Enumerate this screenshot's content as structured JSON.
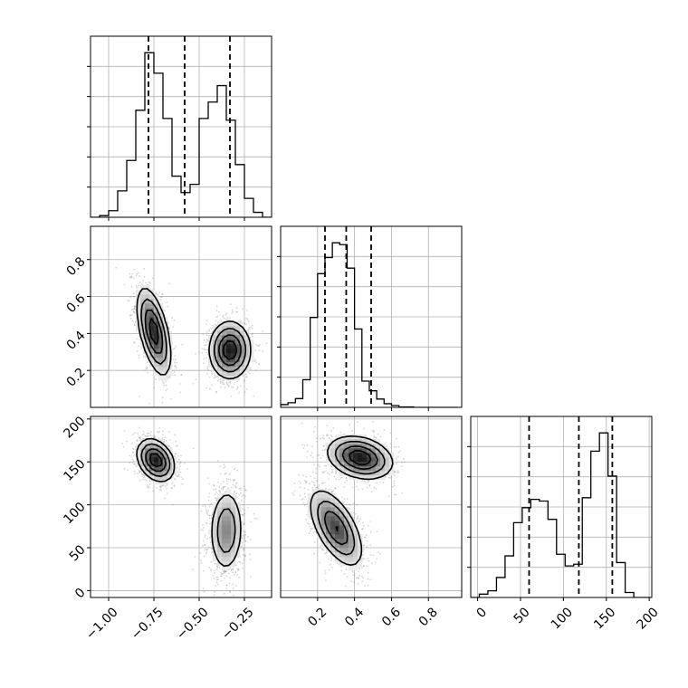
{
  "chart_data": {
    "type": "corner",
    "colors": {
      "ink": "#000000",
      "grid": "#b0b0b0",
      "scatter": "#888888"
    },
    "parameters": [
      {
        "name": "",
        "range": [
          -1.1,
          -0.1
        ],
        "ticks": [
          -1.0,
          -0.75,
          -0.5,
          -0.25
        ],
        "tick_labels": [
          "−1.00",
          "−0.75",
          "−0.50",
          "−0.25"
        ]
      },
      {
        "name": "",
        "range": [
          0.0,
          0.98
        ],
        "ticks": [
          0.2,
          0.4,
          0.6,
          0.8
        ],
        "tick_labels": [
          "0.2",
          "0.4",
          "0.6",
          "0.8"
        ]
      },
      {
        "name": "",
        "range": [
          -8,
          203
        ],
        "ticks": [
          0,
          50,
          100,
          150,
          200
        ],
        "tick_labels": [
          "0",
          "50",
          "100",
          "150",
          "200"
        ]
      }
    ],
    "diagonal": [
      {
        "param": 0,
        "quantiles": [
          -0.78,
          -0.58,
          -0.33
        ],
        "bin_edges": [
          -1.1,
          -1.05,
          -1.0,
          -0.95,
          -0.9,
          -0.85,
          -0.8,
          -0.75,
          -0.7,
          -0.65,
          -0.6,
          -0.55,
          -0.5,
          -0.45,
          -0.4,
          -0.35,
          -0.3,
          -0.25,
          -0.2,
          -0.15,
          -0.1
        ],
        "counts": [
          0,
          2,
          8,
          32,
          69,
          130,
          200,
          175,
          120,
          50,
          30,
          40,
          120,
          140,
          160,
          118,
          64,
          23,
          6,
          0
        ]
      },
      {
        "param": 1,
        "quantiles": [
          0.24,
          0.355,
          0.49
        ],
        "bin_edges": [
          0.0,
          0.04,
          0.08,
          0.12,
          0.16,
          0.2,
          0.24,
          0.28,
          0.32,
          0.36,
          0.4,
          0.44,
          0.48,
          0.52,
          0.56,
          0.6,
          0.64,
          0.68,
          0.72,
          0.76,
          0.8,
          0.84,
          0.88,
          0.92,
          0.96
        ],
        "counts": [
          6,
          10,
          19,
          60,
          195,
          290,
          325,
          357,
          353,
          302,
          170,
          57,
          36,
          18,
          8,
          4,
          1,
          1,
          0,
          0,
          0,
          0,
          0,
          0
        ]
      },
      {
        "param": 2,
        "quantiles": [
          60,
          118,
          157
        ],
        "bin_edges": [
          -8,
          2,
          12,
          22,
          32,
          42,
          52,
          62,
          72,
          82,
          92,
          102,
          112,
          122,
          132,
          142,
          152,
          162,
          172,
          182,
          192,
          202
        ],
        "counts": [
          0,
          2,
          4,
          12,
          25,
          45,
          54,
          59,
          58,
          47,
          26,
          19,
          20,
          60,
          88,
          99,
          73,
          21,
          3,
          0,
          0
        ]
      }
    ],
    "offdiagonal": [
      {
        "x_param": 0,
        "y_param": 1,
        "modes": [
          {
            "cx": -0.75,
            "cy": 0.41,
            "sx": 0.045,
            "sy": 0.115,
            "rho": -0.55,
            "n": 1000
          },
          {
            "cx": -0.33,
            "cy": 0.31,
            "sx": 0.055,
            "sy": 0.075,
            "rho": 0.0,
            "n": 1000
          }
        ]
      },
      {
        "x_param": 0,
        "y_param": 2,
        "modes": [
          {
            "cx": -0.74,
            "cy": 152,
            "sx": 0.05,
            "sy": 12,
            "rho": -0.3,
            "n": 1000
          },
          {
            "cx": -0.35,
            "cy": 70,
            "sx": 0.045,
            "sy": 24,
            "rho": 0.05,
            "n": 1000
          }
        ]
      },
      {
        "x_param": 1,
        "y_param": 2,
        "modes": [
          {
            "cx": 0.43,
            "cy": 155,
            "sx": 0.085,
            "sy": 12,
            "rho": -0.25,
            "n": 1000
          },
          {
            "cx": 0.3,
            "cy": 73,
            "sx": 0.07,
            "sy": 22,
            "rho": -0.6,
            "n": 1000
          }
        ]
      }
    ]
  }
}
